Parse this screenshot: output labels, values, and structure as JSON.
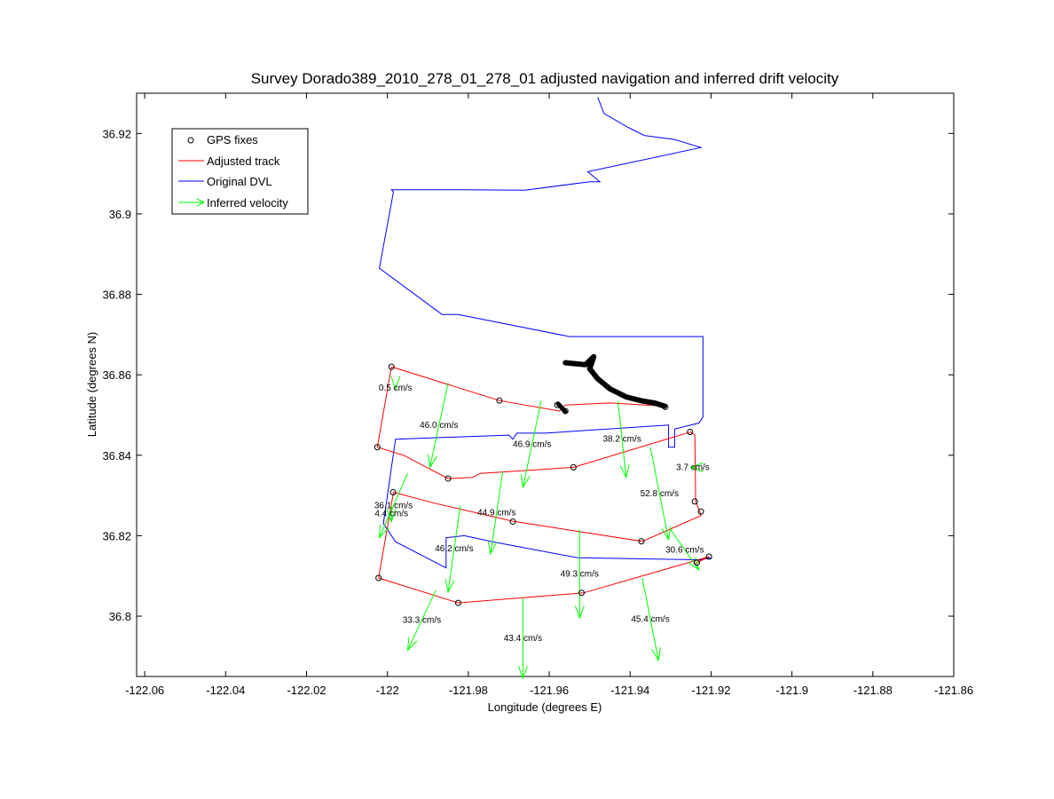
{
  "chart_data": {
    "type": "line",
    "title": "Survey Dorado389_2010_278_01_278_01 adjusted navigation and inferred drift velocity",
    "xlabel": "Longitude (degrees E)",
    "ylabel": "Latitude (degrees N)",
    "xlim": [
      -122.062,
      -121.86
    ],
    "ylim": [
      36.785,
      36.93
    ],
    "xticks": [
      -122.06,
      -122.04,
      -122.02,
      -122.0,
      -121.98,
      -121.96,
      -121.94,
      -121.92,
      -121.9,
      -121.88,
      -121.86
    ],
    "xtick_labels": [
      "-122.06",
      "-122.04",
      "-122.02",
      "-122",
      "-121.98",
      "-121.96",
      "-121.94",
      "-121.92",
      "-121.9",
      "-121.88",
      "-121.86"
    ],
    "yticks": [
      36.8,
      36.82,
      36.84,
      36.86,
      36.88,
      36.9,
      36.92
    ],
    "ytick_labels": [
      "36.8",
      "36.82",
      "36.84",
      "36.86",
      "36.88",
      "36.9",
      "36.92"
    ],
    "grid": false,
    "legend": {
      "placement": "top-left",
      "entries": [
        {
          "label": "GPS fixes",
          "color": "#000000",
          "style": "circle"
        },
        {
          "label": "Adjusted track",
          "color": "#ff0000",
          "style": "line"
        },
        {
          "label": "Original DVL",
          "color": "#0000ff",
          "style": "line"
        },
        {
          "label": "Inferred velocity",
          "color": "#00ff00",
          "style": "arrow"
        }
      ]
    },
    "series": [
      {
        "name": "Original DVL",
        "color": "#0000ff",
        "points": [
          [
            -121.948,
            36.929
          ],
          [
            -121.9465,
            36.925
          ],
          [
            -121.9405,
            36.9215
          ],
          [
            -121.9365,
            36.9195
          ],
          [
            -121.929,
            36.9185
          ],
          [
            -121.9225,
            36.9165
          ],
          [
            -121.9505,
            36.9105
          ],
          [
            -121.9475,
            36.908
          ],
          [
            -121.95,
            36.908
          ],
          [
            -121.966,
            36.9059
          ],
          [
            -121.981,
            36.906
          ],
          [
            -121.999,
            36.906
          ],
          [
            -121.9985,
            36.9055
          ],
          [
            -122.002,
            36.8865
          ],
          [
            -121.9865,
            36.875
          ],
          [
            -121.9825,
            36.875
          ],
          [
            -121.955,
            36.8695
          ],
          [
            -121.922,
            36.8695
          ],
          [
            -121.922,
            36.8495
          ],
          [
            -121.923,
            36.848
          ],
          [
            -121.929,
            36.8465
          ],
          [
            -121.929,
            36.842
          ],
          [
            -121.9305,
            36.842
          ],
          [
            -121.9305,
            36.8475
          ],
          [
            -121.961,
            36.8455
          ],
          [
            -121.968,
            36.8455
          ],
          [
            -121.969,
            36.844
          ],
          [
            -121.97,
            36.845
          ],
          [
            -121.998,
            36.844
          ],
          [
            -122.001,
            36.823
          ],
          [
            -121.998,
            36.8185
          ],
          [
            -121.9855,
            36.812
          ],
          [
            -121.9855,
            36.8195
          ],
          [
            -121.981,
            36.82
          ],
          [
            -121.974,
            36.8185
          ],
          [
            -121.953,
            36.8145
          ],
          [
            -121.9225,
            36.814
          ],
          [
            -121.92,
            36.8145
          ]
        ]
      },
      {
        "name": "Adjusted track",
        "color": "#ff0000",
        "points": [
          [
            -121.999,
            36.862
          ],
          [
            -122.0025,
            36.842
          ],
          [
            -121.996,
            36.84
          ],
          [
            -121.985,
            36.8342
          ],
          [
            -121.979,
            36.8345
          ],
          [
            -121.977,
            36.8355
          ],
          [
            -121.954,
            36.837
          ],
          [
            -121.925,
            36.8458
          ],
          [
            -121.924,
            36.845
          ],
          [
            -121.9238,
            36.8285
          ],
          [
            -121.9228,
            36.826
          ],
          [
            -121.9225,
            36.825
          ],
          [
            -121.937,
            36.8186
          ],
          [
            -121.969,
            36.8236
          ],
          [
            -121.988,
            36.828
          ],
          [
            -121.9985,
            36.8308
          ],
          [
            -122.0022,
            36.8095
          ],
          [
            -121.9825,
            36.8033
          ],
          [
            -121.9515,
            36.8058
          ],
          [
            -121.9205,
            36.8148
          ],
          [
            -121.924,
            36.813
          ]
        ]
      },
      {
        "name": "Adjusted track",
        "color": "#ff0000",
        "points": [
          [
            -121.999,
            36.862
          ],
          [
            -121.9723,
            36.8536
          ],
          [
            -121.9575,
            36.851
          ],
          [
            -121.956,
            36.8525
          ],
          [
            -121.945,
            36.853
          ],
          [
            -121.9315,
            36.8522
          ]
        ]
      }
    ],
    "gps_fixes": [
      [
        -121.999,
        36.862
      ],
      [
        -121.9723,
        36.8536
      ],
      [
        -121.958,
        36.8525
      ],
      [
        -121.956,
        36.851
      ],
      [
        -121.9313,
        36.852
      ],
      [
        -122.0025,
        36.842
      ],
      [
        -121.985,
        36.8342
      ],
      [
        -121.954,
        36.837
      ],
      [
        -121.9252,
        36.8458
      ],
      [
        -121.9986,
        36.8308
      ],
      [
        -121.969,
        36.8235
      ],
      [
        -121.9372,
        36.8186
      ],
      [
        -121.924,
        36.8285
      ],
      [
        -121.9225,
        36.826
      ],
      [
        -122.0022,
        36.8095
      ],
      [
        -121.9825,
        36.8033
      ],
      [
        -121.952,
        36.8058
      ],
      [
        -121.9235,
        36.8133
      ],
      [
        -121.9205,
        36.8148
      ]
    ],
    "velocity_arrows": [
      {
        "x": -121.998,
        "y": 36.857,
        "dx": 0.0,
        "dy": -0.0005,
        "label": "0.5 cm/s"
      },
      {
        "x": -121.985,
        "y": 36.858,
        "dx": -0.0045,
        "dy": -0.021,
        "label": "46.0 cm/s"
      },
      {
        "x": -121.962,
        "y": 36.8535,
        "dx": -0.0045,
        "dy": -0.0215,
        "label": "46.9 cm/s"
      },
      {
        "x": -121.943,
        "y": 36.8535,
        "dx": 0.002,
        "dy": -0.019,
        "label": "38.2 cm/s"
      },
      {
        "x": -121.995,
        "y": 36.8355,
        "dx": -0.007,
        "dy": -0.016,
        "label": "36.1 cm/s"
      },
      {
        "x": -121.9715,
        "y": 36.836,
        "dx": -0.003,
        "dy": -0.0205,
        "label": "44.9 cm/s"
      },
      {
        "x": -121.935,
        "y": 36.842,
        "dx": 0.0045,
        "dy": -0.023,
        "label": "52.8 cm/s"
      },
      {
        "x": -121.924,
        "y": 36.837,
        "dx": -0.001,
        "dy": 0.0,
        "label": "3.7 cm/s"
      },
      {
        "x": -121.999,
        "y": 36.8275,
        "dx": 0.0,
        "dy": -0.004,
        "label": "4.4 cm/s"
      },
      {
        "x": -121.982,
        "y": 36.8275,
        "dx": -0.003,
        "dy": -0.0215,
        "label": "46.2 cm/s"
      },
      {
        "x": -121.9525,
        "y": 36.8215,
        "dx": 0.0,
        "dy": -0.022,
        "label": "49.3 cm/s"
      },
      {
        "x": -121.93,
        "y": 36.8215,
        "dx": 0.007,
        "dy": -0.01,
        "label": "30.6 cm/s"
      },
      {
        "x": -121.988,
        "y": 36.8065,
        "dx": -0.007,
        "dy": -0.015,
        "label": "33.3 cm/s"
      },
      {
        "x": -121.9665,
        "y": 36.8045,
        "dx": 0.0,
        "dy": -0.02,
        "label": "43.4 cm/s"
      },
      {
        "x": -121.937,
        "y": 36.8095,
        "dx": 0.004,
        "dy": -0.0205,
        "label": "45.4 cm/s"
      }
    ],
    "black_track": [
      [
        -121.956,
        36.863
      ],
      [
        -121.951,
        36.8625
      ],
      [
        -121.949,
        36.8645
      ],
      [
        -121.95,
        36.8615
      ],
      [
        -121.948,
        36.859
      ],
      [
        -121.945,
        36.8565
      ],
      [
        -121.941,
        36.8545
      ],
      [
        -121.937,
        36.8535
      ],
      [
        -121.934,
        36.853
      ],
      [
        -121.9315,
        36.8522
      ]
    ],
    "black_segment": [
      [
        -121.9578,
        36.8528
      ],
      [
        -121.956,
        36.8508
      ]
    ]
  }
}
